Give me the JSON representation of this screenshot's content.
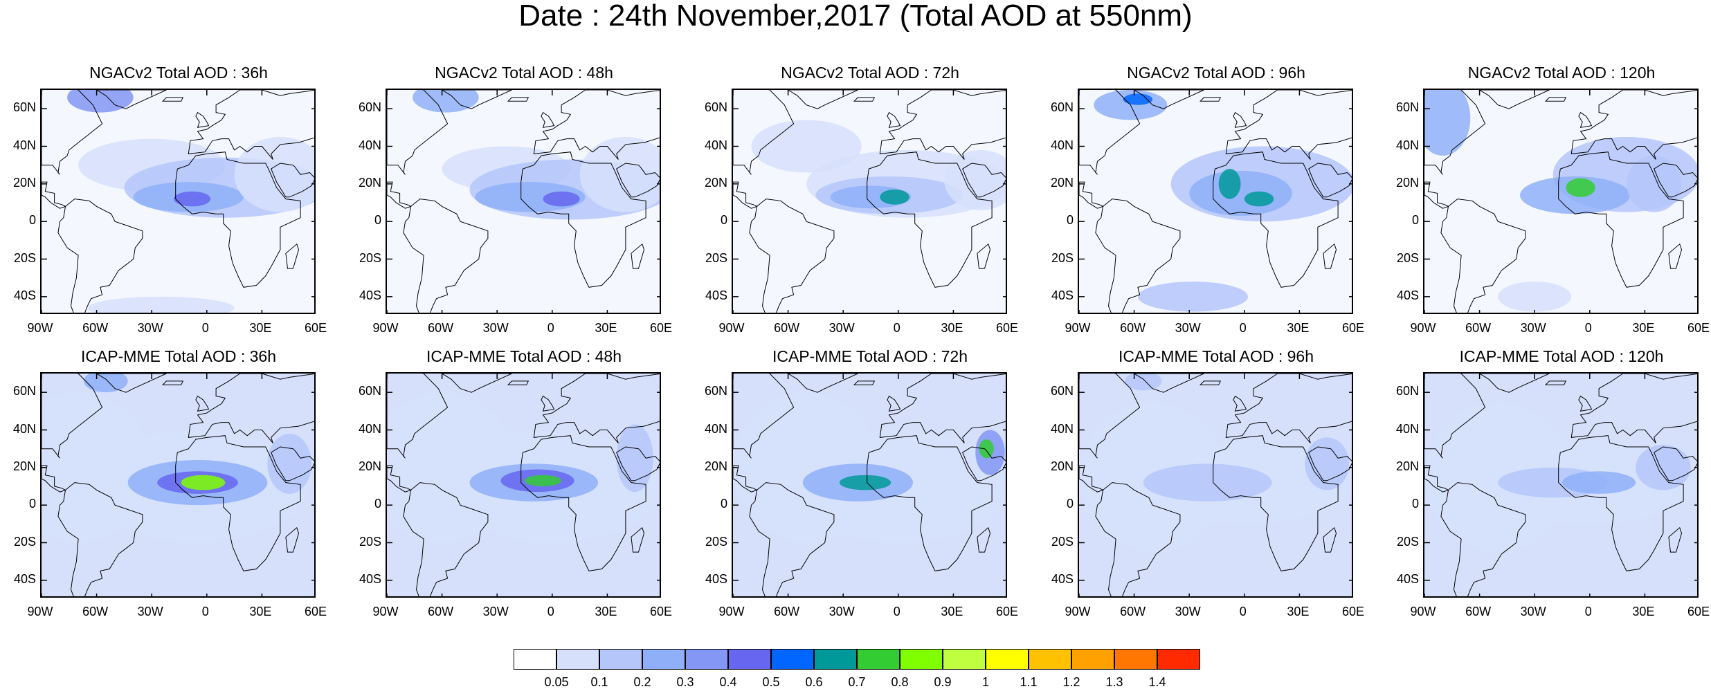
{
  "title": "Date : 24th November,2017 (Total AOD at 550nm)",
  "panels": [
    {
      "title": "NGACv2 Total AOD : 36h",
      "model": "NGACv2",
      "lead": "36h"
    },
    {
      "title": "NGACv2 Total AOD : 48h",
      "model": "NGACv2",
      "lead": "48h"
    },
    {
      "title": "NGACv2 Total AOD : 72h",
      "model": "NGACv2",
      "lead": "72h"
    },
    {
      "title": "NGACv2 Total AOD : 96h",
      "model": "NGACv2",
      "lead": "96h"
    },
    {
      "title": "NGACv2 Total AOD : 120h",
      "model": "NGACv2",
      "lead": "120h"
    },
    {
      "title": "ICAP-MME Total AOD : 36h",
      "model": "ICAP-MME",
      "lead": "36h"
    },
    {
      "title": "ICAP-MME Total AOD : 48h",
      "model": "ICAP-MME",
      "lead": "48h"
    },
    {
      "title": "ICAP-MME Total AOD : 72h",
      "model": "ICAP-MME",
      "lead": "72h"
    },
    {
      "title": "ICAP-MME Total AOD : 96h",
      "model": "ICAP-MME",
      "lead": "96h"
    },
    {
      "title": "ICAP-MME Total AOD : 120h",
      "model": "ICAP-MME",
      "lead": "120h"
    }
  ],
  "lat_ticks": [
    "60N",
    "40N",
    "20N",
    "0",
    "20S",
    "40S"
  ],
  "lon_ticks": [
    "90W",
    "60W",
    "30W",
    "0",
    "30E",
    "60E"
  ],
  "lon_range": [
    -90,
    60
  ],
  "lat_range": [
    -50,
    70
  ],
  "colorbar": {
    "labels": [
      "0.05",
      "0.1",
      "0.2",
      "0.3",
      "0.4",
      "0.5",
      "0.6",
      "0.7",
      "0.8",
      "0.9",
      "1",
      "1.1",
      "1.2",
      "1.3",
      "1.4"
    ],
    "colors": [
      "#ffffff",
      "#d6e0fb",
      "#b4c6fa",
      "#8fb0f8",
      "#8497f4",
      "#6666f0",
      "#0066ff",
      "#009999",
      "#33cc33",
      "#7fff00",
      "#c0ff40",
      "#ffff00",
      "#ffc200",
      "#ffa100",
      "#ff7700",
      "#ff2a00"
    ]
  }
}
